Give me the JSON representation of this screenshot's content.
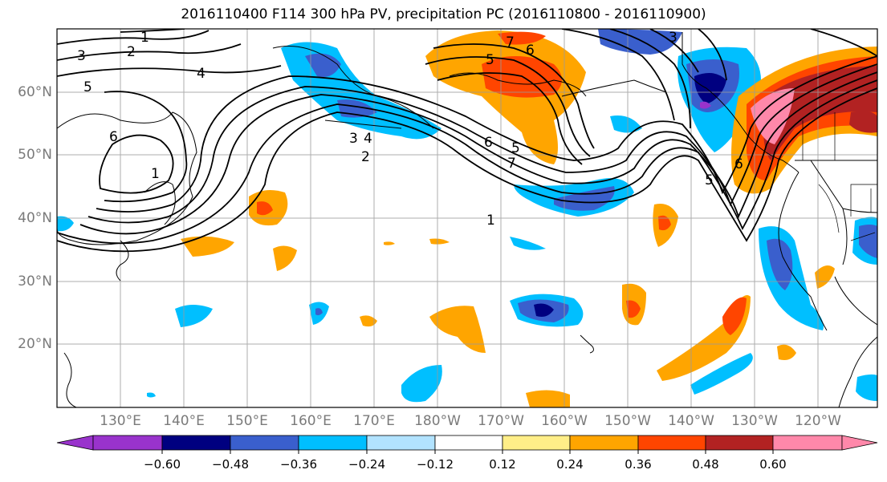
{
  "title": "2016110400 F114 300 hPa PV, precipitation PC (2016110800 - 2016110900)",
  "map": {
    "lon_labels": [
      "130°E",
      "140°E",
      "150°E",
      "160°E",
      "170°E",
      "180°W",
      "170°W",
      "160°W",
      "150°W",
      "140°W",
      "130°W",
      "120°W"
    ],
    "lat_labels": [
      "60°N",
      "50°N",
      "40°N",
      "30°N",
      "20°N"
    ],
    "contour_labels": [
      "1",
      "2",
      "3",
      "4",
      "5",
      "6",
      "7"
    ],
    "land_color": "#ffffff",
    "grid_color": "#9a9a9a"
  },
  "colorbar": {
    "ticks": [
      "−0.60",
      "−0.48",
      "−0.36",
      "−0.24",
      "−0.12",
      "0.12",
      "0.24",
      "0.36",
      "0.48",
      "0.60"
    ],
    "colors": [
      "#9933cc",
      "#000080",
      "#3a5fcd",
      "#00bfff",
      "#b2e3ff",
      "#ffffff",
      "#ffee88",
      "#ffa500",
      "#ff4500",
      "#b22222",
      "#ff88aa"
    ]
  }
}
